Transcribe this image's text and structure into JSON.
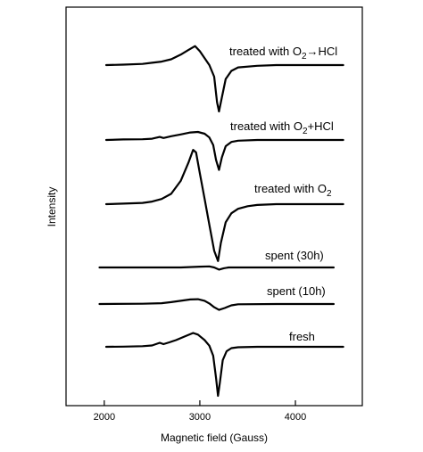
{
  "chart_data": {
    "type": "line",
    "xlabel": "Magnetic field (Gauss)",
    "ylabel": "Intensity",
    "xlim": [
      1600,
      4700
    ],
    "xticks": [
      2000,
      3000,
      4000
    ],
    "xtick_labels": [
      "2000",
      "3000",
      "4000"
    ],
    "yticks": [],
    "series": [
      {
        "name": "treated with O2→HCl",
        "label_main": "treated with O",
        "label_sub": "2",
        "label_tail": "→HCl",
        "x": [
          2020,
          2200,
          2400,
          2500,
          2600,
          2700,
          2800,
          2880,
          2950,
          3000,
          3050,
          3100,
          3150,
          3180,
          3200,
          3230,
          3270,
          3330,
          3400,
          3600,
          3800,
          4000,
          4200,
          4500
        ],
        "y": [
          0,
          0.02,
          0.05,
          0.1,
          0.15,
          0.25,
          0.45,
          0.65,
          0.82,
          0.6,
          0.3,
          0,
          -0.5,
          -1.6,
          -2.0,
          -1.4,
          -0.6,
          -0.25,
          -0.1,
          -0.03,
          0,
          0,
          0,
          0
        ]
      },
      {
        "name": "treated with O2+HCl",
        "label_main": "treated with O",
        "label_sub": "2",
        "label_tail": "+HCl",
        "x": [
          2020,
          2200,
          2400,
          2500,
          2580,
          2620,
          2700,
          2800,
          2900,
          2980,
          3050,
          3100,
          3140,
          3170,
          3200,
          3230,
          3270,
          3330,
          3400,
          3600,
          3800,
          4000,
          4200,
          4500
        ],
        "y": [
          0,
          0.02,
          0.03,
          0.05,
          0.12,
          0.08,
          0.15,
          0.22,
          0.3,
          0.32,
          0.25,
          0.1,
          -0.2,
          -0.8,
          -1.2,
          -0.7,
          -0.25,
          -0.08,
          -0.03,
          0,
          0,
          0,
          0,
          0
        ]
      },
      {
        "name": "treated with O2",
        "label_main": "treated with O",
        "label_sub": "2",
        "label_tail": "",
        "x": [
          2020,
          2200,
          2400,
          2500,
          2600,
          2700,
          2800,
          2880,
          2930,
          2960,
          3000,
          3050,
          3100,
          3150,
          3190,
          3220,
          3270,
          3330,
          3400,
          3500,
          3600,
          3800,
          4000,
          4200,
          4500
        ],
        "y": [
          0,
          0.02,
          0.05,
          0.1,
          0.2,
          0.4,
          0.9,
          1.6,
          2.1,
          2.0,
          1.2,
          0.2,
          -0.8,
          -1.8,
          -2.2,
          -1.5,
          -0.7,
          -0.35,
          -0.18,
          -0.08,
          -0.03,
          0,
          0,
          0,
          0
        ]
      },
      {
        "name": "spent (30h)",
        "label_main": "spent (30h)",
        "label_sub": "",
        "label_tail": "",
        "x": [
          1950,
          2400,
          2800,
          3000,
          3100,
          3150,
          3200,
          3250,
          3300,
          3400,
          3800,
          4400
        ],
        "y": [
          0,
          0,
          0,
          0.03,
          0.04,
          0,
          -0.08,
          -0.03,
          0,
          0,
          0,
          0
        ]
      },
      {
        "name": "spent (10h)",
        "label_main": "spent (10h)",
        "label_sub": "",
        "label_tail": "",
        "x": [
          1950,
          2400,
          2600,
          2700,
          2800,
          2900,
          2980,
          3050,
          3100,
          3150,
          3200,
          3260,
          3330,
          3400,
          3800,
          4400
        ],
        "y": [
          0,
          0.01,
          0.03,
          0.07,
          0.12,
          0.17,
          0.18,
          0.12,
          0.02,
          -0.12,
          -0.22,
          -0.15,
          -0.05,
          -0.01,
          0,
          0
        ]
      },
      {
        "name": "fresh",
        "label_main": "fresh",
        "label_sub": "",
        "label_tail": "",
        "x": [
          2020,
          2200,
          2400,
          2500,
          2580,
          2620,
          2680,
          2750,
          2850,
          2930,
          2980,
          3050,
          3100,
          3140,
          3170,
          3190,
          3210,
          3240,
          3280,
          3330,
          3400,
          3600,
          3800,
          4000,
          4200,
          4500
        ],
        "y": [
          0,
          0.01,
          0.03,
          0.06,
          0.18,
          0.12,
          0.2,
          0.3,
          0.48,
          0.62,
          0.55,
          0.3,
          0.05,
          -0.4,
          -1.4,
          -2.2,
          -1.6,
          -0.6,
          -0.2,
          -0.06,
          -0.02,
          0,
          0,
          0,
          0,
          0
        ]
      }
    ]
  }
}
